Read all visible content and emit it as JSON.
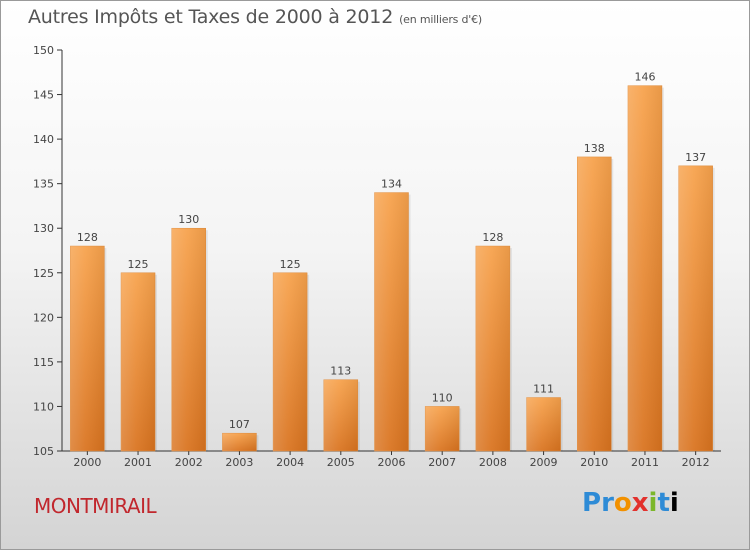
{
  "header": {
    "title": "Autres Impôts et Taxes de 2000 à 2012",
    "subtitle": "(en milliers d'€)"
  },
  "footer": {
    "town": "MONTMIRAIL",
    "logo_letters": [
      "P",
      "r",
      "o",
      "x",
      "i",
      "t",
      "i"
    ]
  },
  "colors": {
    "bar_top": "#f7a24c",
    "bar_bottom": "#d9731f",
    "town": "#c1272d"
  },
  "chart_data": {
    "type": "bar",
    "title": "Autres Impôts et Taxes de 2000 à 2012",
    "subtitle": "(en milliers d'€)",
    "categories": [
      "2000",
      "2001",
      "2002",
      "2003",
      "2004",
      "2005",
      "2006",
      "2007",
      "2008",
      "2009",
      "2010",
      "2011",
      "2012"
    ],
    "values": [
      128,
      125,
      130,
      107,
      125,
      113,
      134,
      110,
      128,
      111,
      138,
      146,
      137
    ],
    "ylim": [
      105,
      150
    ],
    "yticks": [
      105,
      110,
      115,
      120,
      125,
      130,
      135,
      140,
      145,
      150
    ],
    "grid": false,
    "legend": "none",
    "xlabel": "",
    "ylabel": ""
  }
}
